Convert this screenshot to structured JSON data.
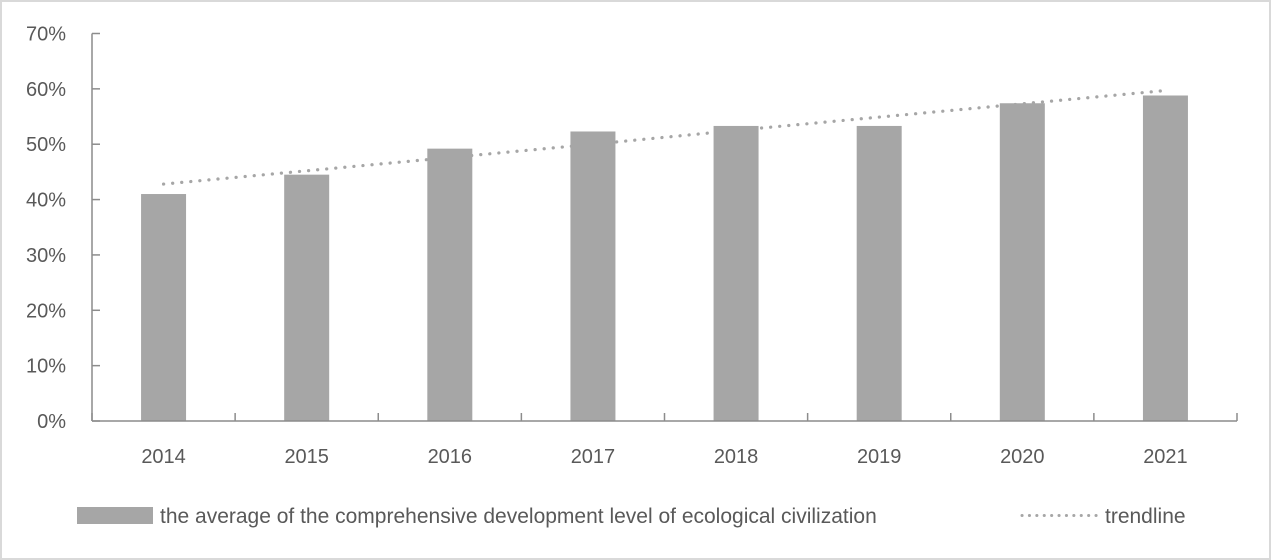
{
  "chart_data": {
    "type": "bar",
    "title": "",
    "xlabel": "",
    "ylabel": "",
    "categories": [
      "2014",
      "2015",
      "2016",
      "2017",
      "2018",
      "2019",
      "2020",
      "2021"
    ],
    "series": [
      {
        "name": "the average of the comprehensive development level of ecological civilization",
        "type": "bar",
        "color": "#a6a6a6",
        "values": [
          0.41,
          0.445,
          0.492,
          0.523,
          0.533,
          0.533,
          0.574,
          0.588
        ]
      },
      {
        "name": "trendline",
        "type": "line",
        "style": "dotted",
        "color": "#a6a6a6",
        "values": [
          0.428,
          0.452,
          0.476,
          0.5,
          0.525,
          0.549,
          0.573,
          0.597
        ]
      }
    ],
    "ylim": [
      0,
      0.7
    ],
    "yticks": [
      0,
      0.1,
      0.2,
      0.3,
      0.4,
      0.5,
      0.6,
      0.7
    ],
    "ytick_labels": [
      "0%",
      "10%",
      "20%",
      "30%",
      "40%",
      "50%",
      "60%",
      "70%"
    ],
    "grid": false,
    "legend_position": "bottom",
    "legend": [
      {
        "label": "the average of the comprehensive development level of ecological civilization",
        "marker": "bar"
      },
      {
        "label": "trendline",
        "marker": "dotted-line"
      }
    ]
  }
}
